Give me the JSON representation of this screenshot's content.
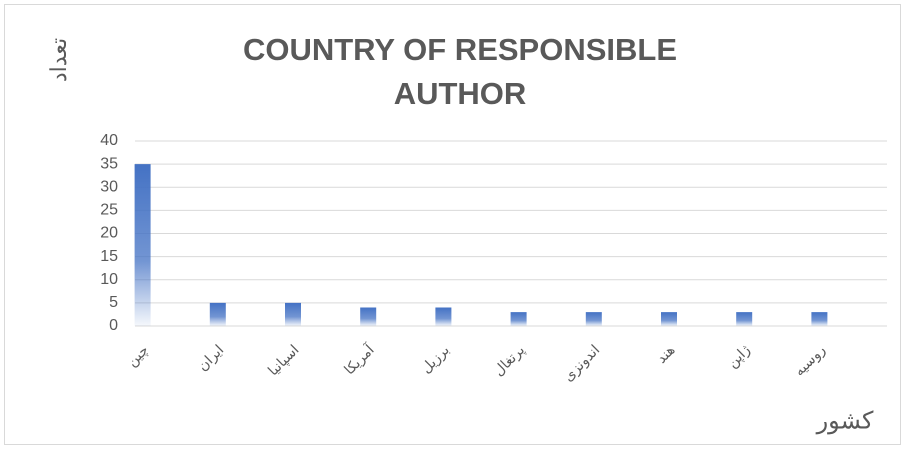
{
  "chart_data": {
    "type": "bar",
    "title": "COUNTRY OF RESPONSIBLE AUTHOR",
    "y_label": "تعداد",
    "x_label": "کشور",
    "categories": [
      "چین",
      "ایران",
      "اسپانیا",
      "آمریکا",
      "برزیل",
      "پرتغال",
      "اندونزی",
      "هند",
      "ژاپن",
      "روسیه"
    ],
    "values": [
      35,
      5,
      5,
      4,
      4,
      3,
      3,
      3,
      3,
      3
    ],
    "color": "#4472c4",
    "ylim": [
      0,
      40
    ],
    "yticks": [
      0,
      5,
      10,
      15,
      20,
      25,
      30,
      35,
      40
    ],
    "grid": true
  }
}
